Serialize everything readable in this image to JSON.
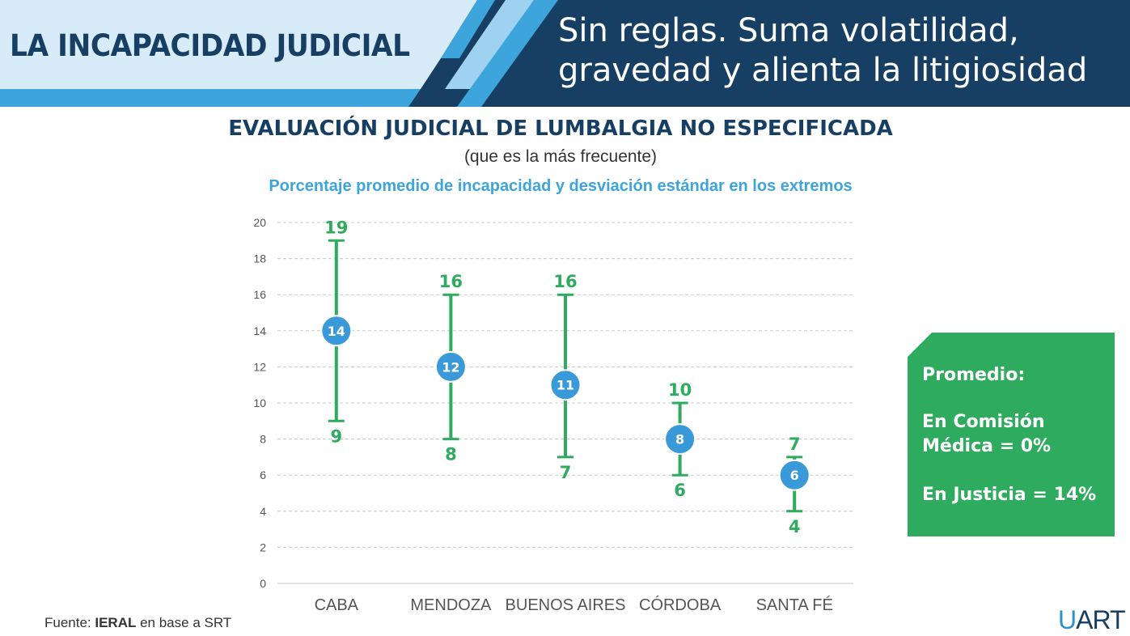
{
  "header": {
    "left_title": "LA INCAPACIDAD JUDICIAL",
    "right_title_line1": "Sin reglas. Suma volatilidad,",
    "right_title_line2": "gravedad y alienta la litigiosidad"
  },
  "chart_title": "EVALUACIÓN JUDICIAL DE LUMBALGIA NO ESPECIFICADA",
  "chart_subtitle": "(que es la más frecuente)",
  "chart_caption": "Porcentaje promedio de incapacidad y desviación estándar en los extremos",
  "chart_data": {
    "type": "scatter",
    "categories": [
      "CABA",
      "MENDOZA",
      "BUENOS AIRES",
      "CÓRDOBA",
      "SANTA FÉ"
    ],
    "mean": [
      14,
      12,
      11,
      8,
      6
    ],
    "high": [
      19,
      16,
      16,
      10,
      7
    ],
    "low": [
      9,
      8,
      7,
      6,
      4
    ],
    "ylim": [
      0,
      20
    ],
    "yticks": [
      0,
      2,
      4,
      6,
      8,
      10,
      12,
      14,
      16,
      18,
      20
    ],
    "grid": true,
    "colors": {
      "range": "#2fab5f",
      "mean": "#3a9ad9",
      "grid": "#c8c8c8",
      "axis_text": "#555555"
    }
  },
  "side_box": {
    "heading": "Promedio:",
    "line1": "En Comisión",
    "line2": "Médica = 0%",
    "line3": "En Justicia = 14%"
  },
  "footer": {
    "source_prefix": "Fuente: ",
    "source_bold": "IERAL",
    "source_suffix": " en base a SRT"
  },
  "logo": {
    "first": "U",
    "rest": "ART"
  },
  "colors": {
    "navy": "#173e63",
    "light_band": "#d7ecf8",
    "accent_blue": "#3da5db",
    "green": "#2fab5f"
  }
}
